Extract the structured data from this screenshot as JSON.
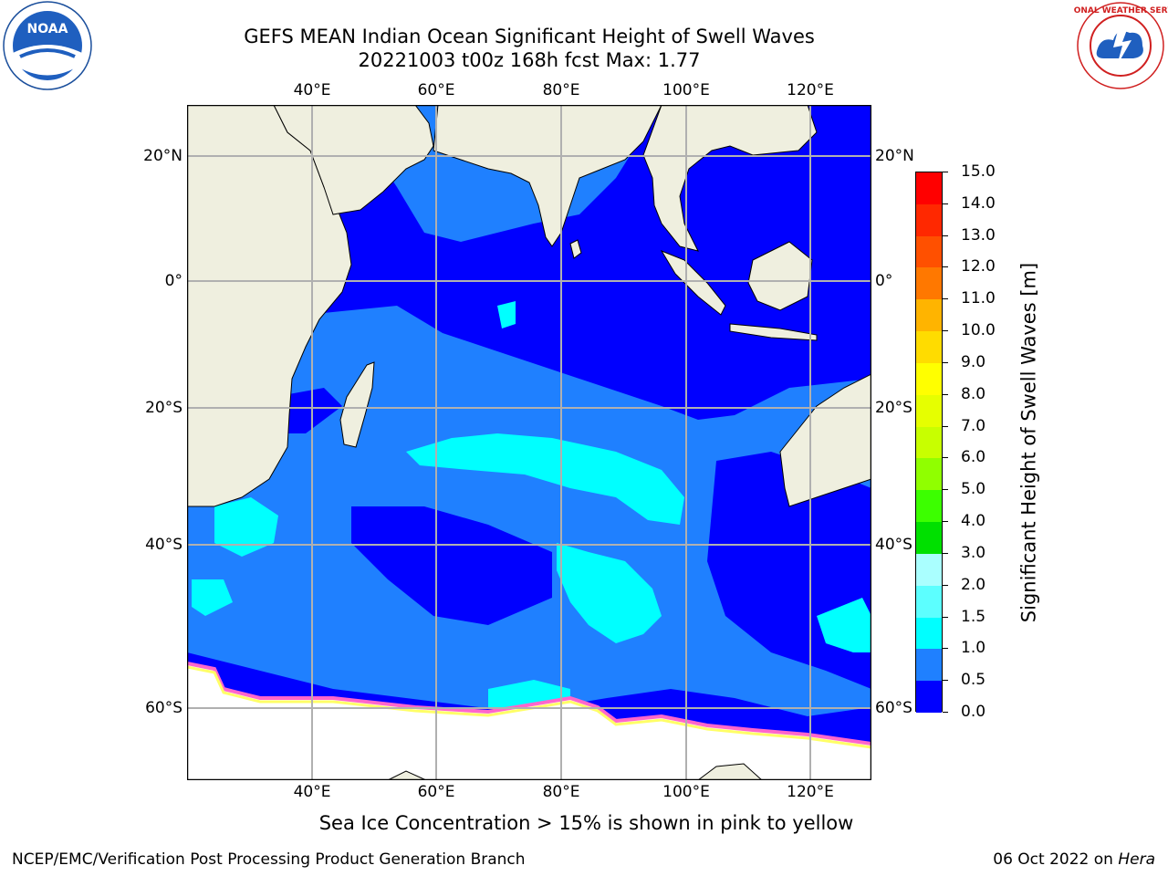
{
  "header": {
    "title_line1": "GEFS MEAN Indian Ocean Significant Height of Swell Waves",
    "title_line2": "20221003 t00z 168h fcst   Max: 1.77"
  },
  "logos": {
    "left": {
      "icon": "noaa-logo",
      "text": "NOAA"
    },
    "right": {
      "icon": "nws-logo",
      "text": "NATIONAL WEATHER SERVICE"
    }
  },
  "map": {
    "lon_ticks": [
      "40°E",
      "60°E",
      "80°E",
      "100°E",
      "120°E"
    ],
    "lat_ticks": [
      "20°N",
      "0°",
      "20°S",
      "40°S",
      "60°S"
    ],
    "colors": {
      "land": "#efefdf",
      "ocean_0_0_5": "#0000ff",
      "ocean_0_5_1_0": "#1f80ff",
      "ocean_1_0_1_5": "#00ffff",
      "ocean_1_5_2_0": "#5cffff",
      "grid": "#b0b0b0",
      "sea_ice_pink": "#ff66cc",
      "sea_ice_yellow": "#ffff66"
    }
  },
  "colorbar": {
    "title": "Significant Height of Swell Waves [m]",
    "labels": [
      "15.0",
      "14.0",
      "13.0",
      "12.0",
      "11.0",
      "10.0",
      "9.0",
      "8.0",
      "7.0",
      "6.0",
      "5.0",
      "4.0",
      "3.0",
      "2.0",
      "1.5",
      "1.0",
      "0.5",
      "0.0"
    ],
    "colors": [
      "#ff0000",
      "#ff2800",
      "#ff5000",
      "#ff7800",
      "#ff9600",
      "#ffb400",
      "#ffdc00",
      "#ffff00",
      "#e6ff00",
      "#c8ff00",
      "#90ff00",
      "#3cff00",
      "#00e000",
      "#00c000",
      "#44ff77",
      "#99ffaa",
      "#aaffff",
      "#5cffff",
      "#00ffff",
      "#1f80ff",
      "#0000ff"
    ]
  },
  "footer": {
    "sea_ice_note": "Sea Ice Concentration > 15% is shown in pink to yellow",
    "credit_left": "NCEP/EMC/Verification Post Processing Product Generation Branch",
    "credit_right_prefix": "06 Oct 2022 on ",
    "credit_right_host": "Hera"
  }
}
